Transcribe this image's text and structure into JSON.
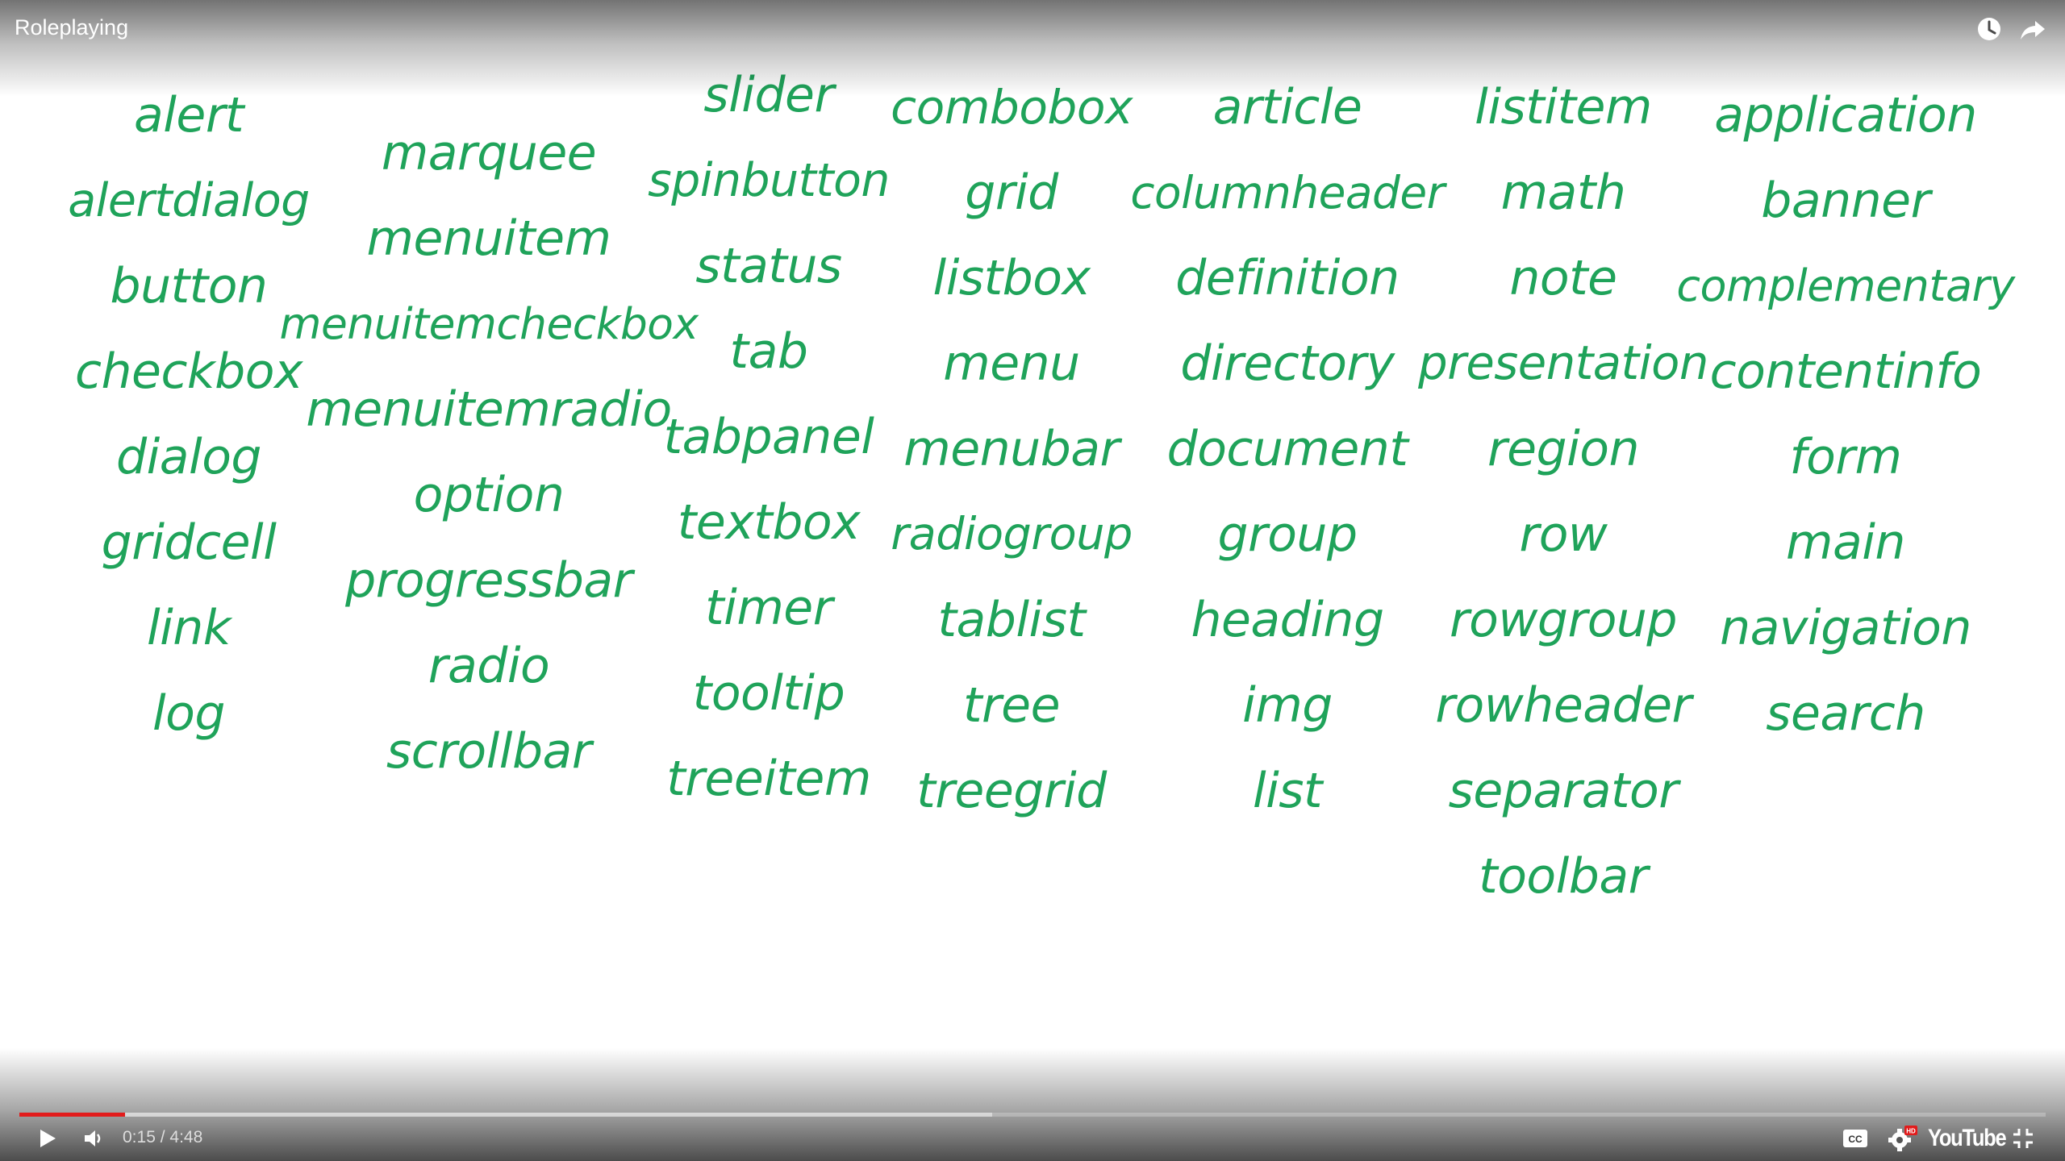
{
  "player": {
    "title": "Roleplaying",
    "time_current": "0:15",
    "time_separator": " / ",
    "time_total": "4:48",
    "progress_played_fraction": 0.052,
    "progress_buffered_fraction": 0.48,
    "brand": "YouTube",
    "quality_badge": "HD",
    "accent_color": "#e21b1b"
  },
  "content": {
    "word_color": "#1fa35a",
    "columns": [
      [
        "alert",
        "alertdialog",
        "button",
        "checkbox",
        "dialog",
        "gridcell",
        "link",
        "log"
      ],
      [
        "marquee",
        "menuitem",
        "menuitemcheckbox",
        "menuitemradio",
        "option",
        "progressbar",
        "radio",
        "scrollbar"
      ],
      [
        "slider",
        "spinbutton",
        "status",
        "tab",
        "tabpanel",
        "textbox",
        "timer",
        "tooltip",
        "treeitem"
      ],
      [
        "combobox",
        "grid",
        "listbox",
        "menu",
        "menubar",
        "radiogroup",
        "tablist",
        "tree",
        "treegrid"
      ],
      [
        "article",
        "columnheader",
        "definition",
        "directory",
        "document",
        "group",
        "heading",
        "img",
        "list"
      ],
      [
        "listitem",
        "math",
        "note",
        "presentation",
        "region",
        "row",
        "rowgroup",
        "rowheader",
        "separator",
        "toolbar"
      ],
      [
        "application",
        "banner",
        "complementary",
        "contentinfo",
        "form",
        "main",
        "navigation",
        "search"
      ]
    ]
  },
  "icons": {
    "watch_later": "clock-icon",
    "share": "share-icon",
    "play": "play-icon",
    "volume": "volume-icon",
    "captions": "captions-icon",
    "settings": "gear-icon",
    "exit_fullscreen": "exit-fullscreen-icon"
  }
}
